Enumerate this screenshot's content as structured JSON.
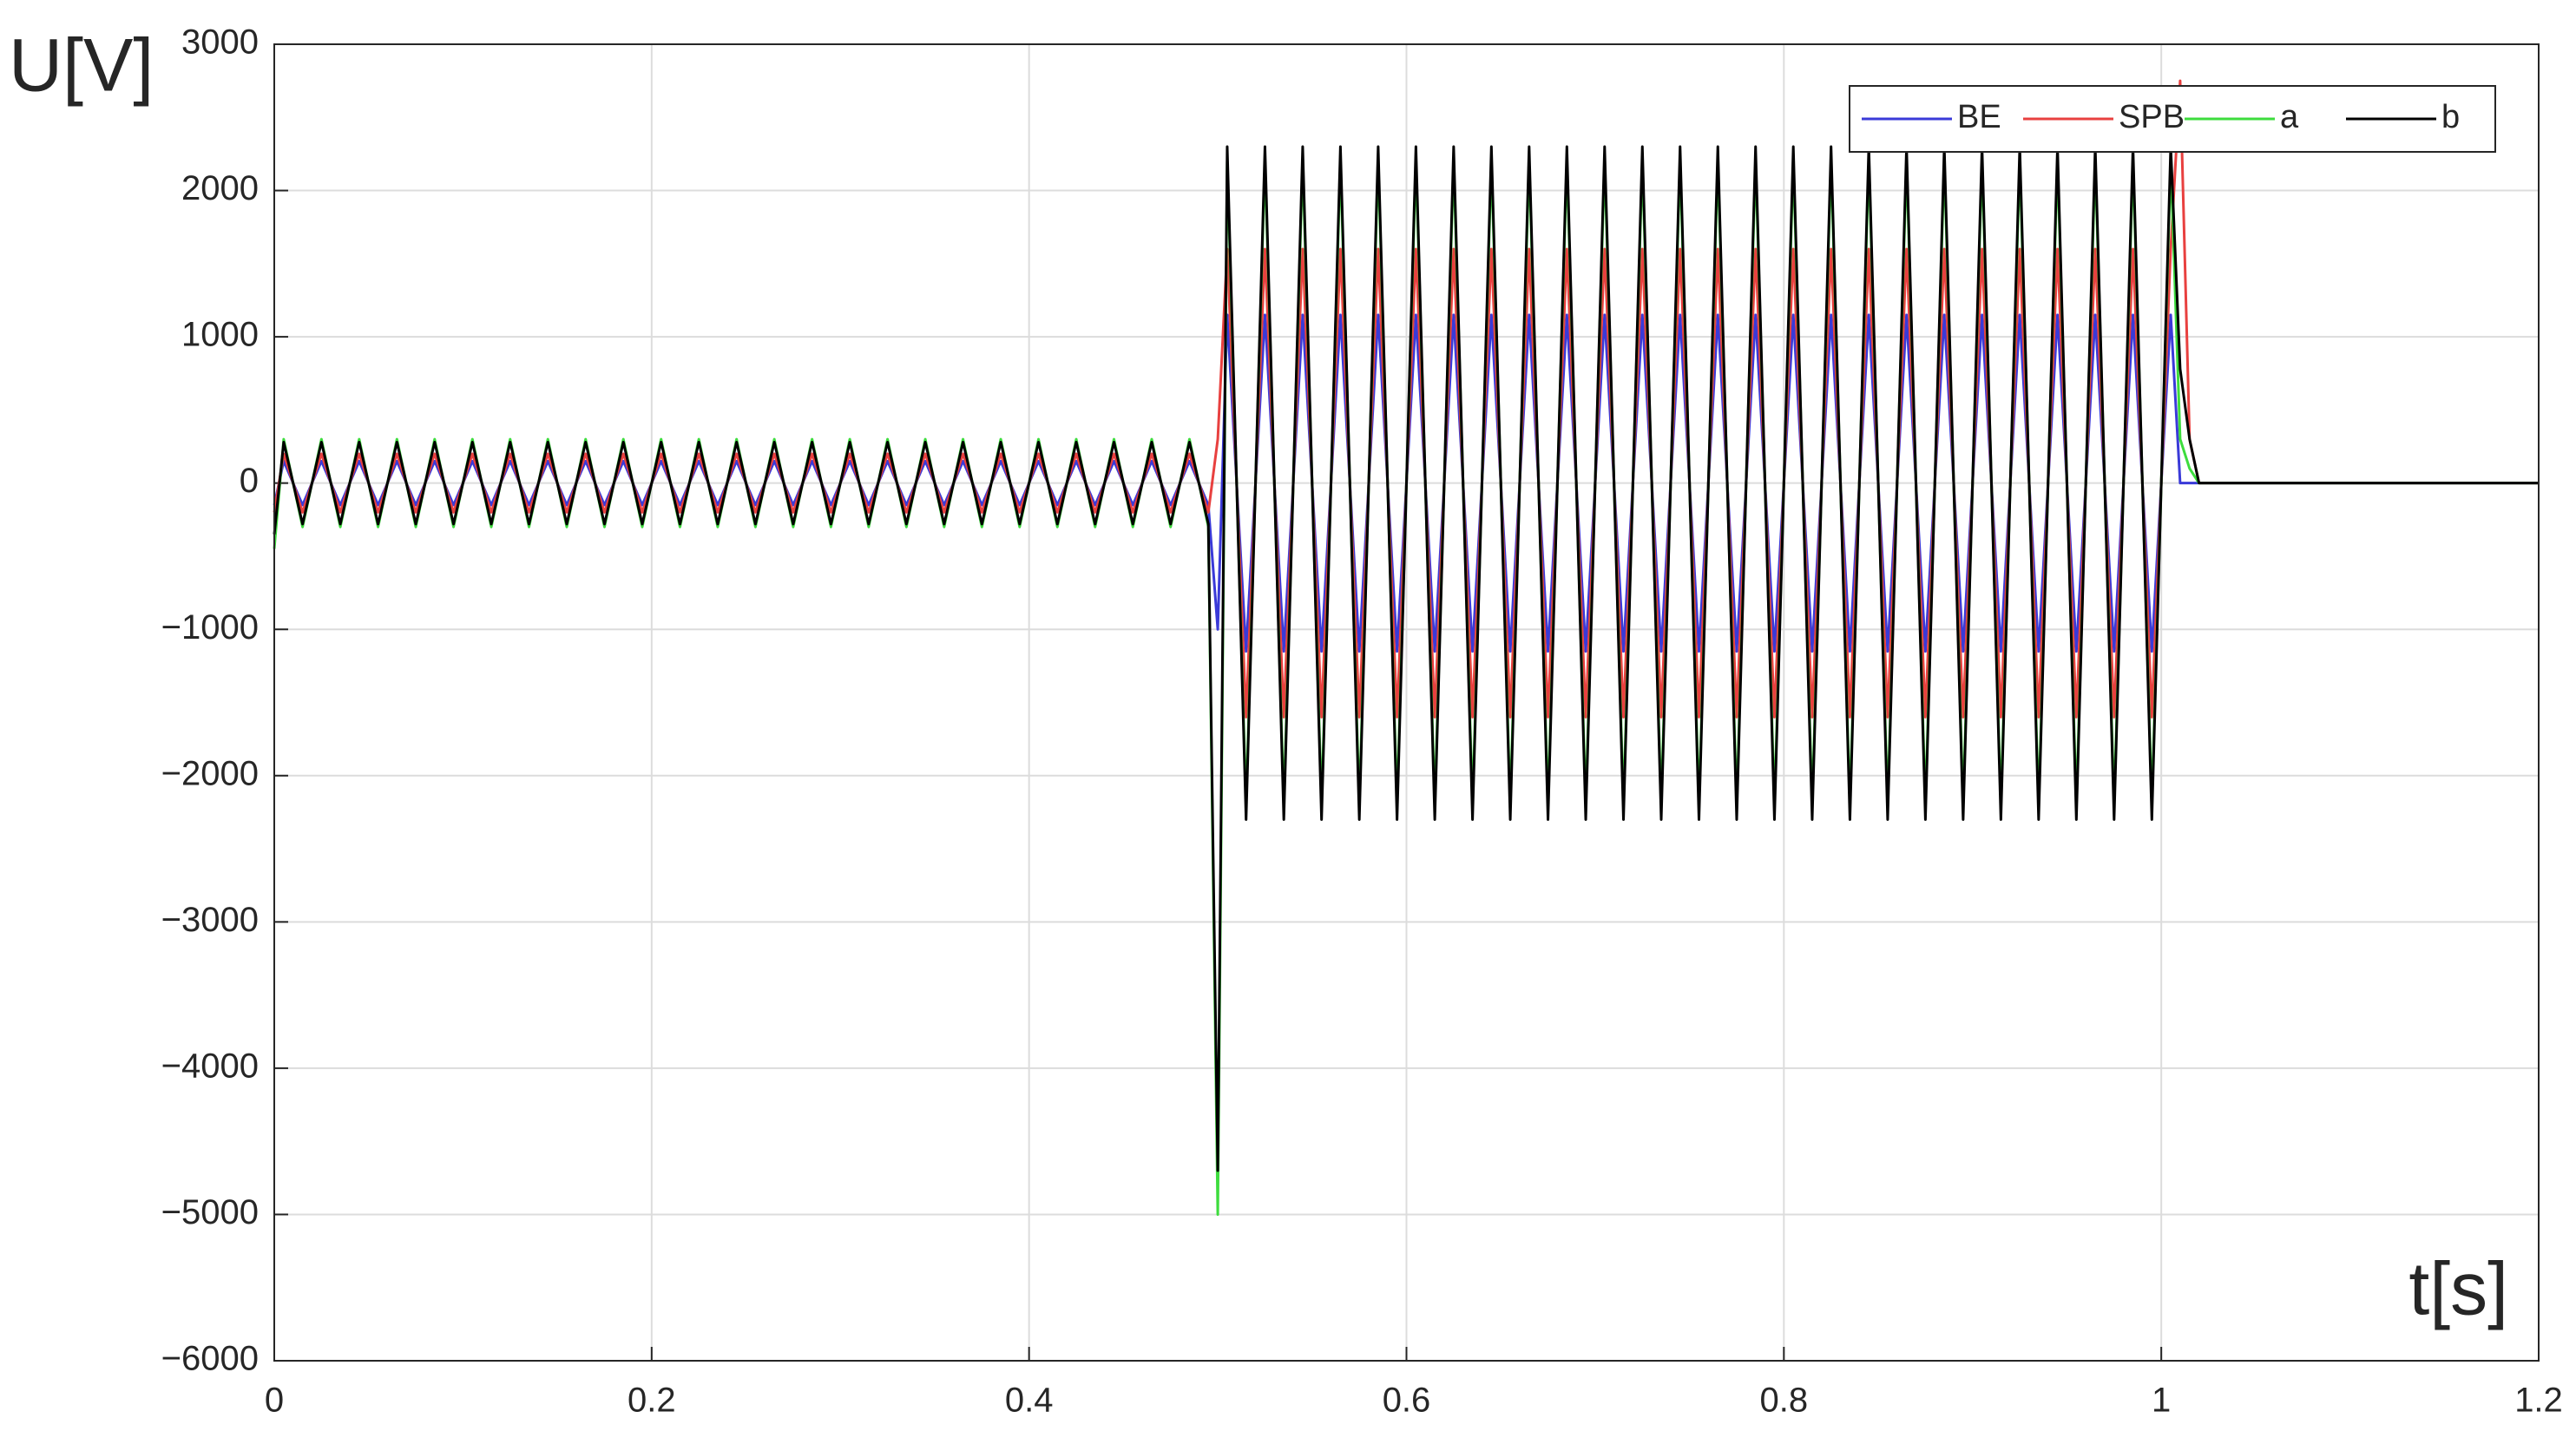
{
  "chart_data": {
    "type": "line",
    "ylabel": "U[V]",
    "xlabel": "t[s]",
    "x": [
      0,
      0.005,
      0.015,
      0.025,
      0.035,
      0.045,
      0.055,
      0.065,
      0.075,
      0.085,
      0.095,
      0.105,
      0.115,
      0.125,
      0.135,
      0.145,
      0.155,
      0.165,
      0.175,
      0.185,
      0.195,
      0.205,
      0.215,
      0.225,
      0.235,
      0.245,
      0.255,
      0.265,
      0.275,
      0.285,
      0.295,
      0.305,
      0.315,
      0.325,
      0.335,
      0.345,
      0.355,
      0.365,
      0.375,
      0.385,
      0.395,
      0.405,
      0.415,
      0.425,
      0.435,
      0.445,
      0.455,
      0.465,
      0.475,
      0.485,
      0.495,
      0.5,
      0.505,
      0.515,
      0.525,
      0.535,
      0.545,
      0.555,
      0.565,
      0.575,
      0.585,
      0.595,
      0.605,
      0.615,
      0.625,
      0.635,
      0.645,
      0.655,
      0.665,
      0.675,
      0.685,
      0.695,
      0.705,
      0.715,
      0.725,
      0.735,
      0.745,
      0.755,
      0.765,
      0.775,
      0.785,
      0.795,
      0.805,
      0.815,
      0.825,
      0.835,
      0.845,
      0.855,
      0.865,
      0.875,
      0.885,
      0.895,
      0.905,
      0.915,
      0.925,
      0.935,
      0.945,
      0.955,
      0.965,
      0.975,
      0.985,
      0.995,
      1.005,
      1.01,
      1.015,
      1.02,
      1.2
    ],
    "series": [
      {
        "name": "BE",
        "color": "#3a3ad8",
        "values": [
          -150,
          150,
          -150,
          150,
          -150,
          150,
          -150,
          150,
          -150,
          150,
          -150,
          150,
          -150,
          150,
          -150,
          150,
          -150,
          150,
          -150,
          150,
          -150,
          150,
          -150,
          150,
          -150,
          150,
          -150,
          150,
          -150,
          150,
          -150,
          150,
          -150,
          150,
          -150,
          150,
          -150,
          150,
          -150,
          150,
          -150,
          150,
          -150,
          150,
          -150,
          150,
          -150,
          150,
          -150,
          150,
          -150,
          -1000,
          1150,
          -1150,
          1150,
          -1150,
          1150,
          -1150,
          1150,
          -1150,
          1150,
          -1150,
          1150,
          -1150,
          1150,
          -1150,
          1150,
          -1150,
          1150,
          -1150,
          1150,
          -1150,
          1150,
          -1150,
          1150,
          -1150,
          1150,
          -1150,
          1150,
          -1150,
          1150,
          -1150,
          1150,
          -1150,
          1150,
          -1150,
          1150,
          -1150,
          1150,
          -1150,
          1150,
          -1150,
          1150,
          -1150,
          1150,
          -1150,
          1150,
          -1150,
          1150,
          -1150,
          1150,
          -1150,
          1150,
          0,
          0,
          0,
          0
        ]
      },
      {
        "name": "SPB",
        "color": "#e8403f",
        "values": [
          -200,
          200,
          -200,
          200,
          -200,
          200,
          -200,
          200,
          -200,
          200,
          -200,
          200,
          -200,
          200,
          -200,
          200,
          -200,
          200,
          -200,
          200,
          -200,
          200,
          -200,
          200,
          -200,
          200,
          -200,
          200,
          -200,
          200,
          -200,
          200,
          -200,
          200,
          -200,
          200,
          -200,
          200,
          -200,
          200,
          -200,
          200,
          -200,
          200,
          -200,
          200,
          -200,
          200,
          -200,
          200,
          -200,
          300,
          1600,
          -1600,
          1600,
          -1600,
          1600,
          -1600,
          1600,
          -1600,
          1600,
          -1600,
          1600,
          -1600,
          1600,
          -1600,
          1600,
          -1600,
          1600,
          -1600,
          1600,
          -1600,
          1600,
          -1600,
          1600,
          -1600,
          1600,
          -1600,
          1600,
          -1600,
          1600,
          -1600,
          1600,
          -1600,
          1600,
          -1600,
          1600,
          -1600,
          1600,
          -1600,
          1600,
          -1600,
          1600,
          -1600,
          1600,
          -1600,
          1600,
          -1600,
          1600,
          -1600,
          1600,
          -1600,
          1600,
          2750,
          300,
          0,
          0
        ]
      },
      {
        "name": "a",
        "color": "#3ddc3d",
        "values": [
          -450,
          300,
          -300,
          300,
          -300,
          300,
          -300,
          300,
          -300,
          300,
          -300,
          300,
          -300,
          300,
          -300,
          300,
          -300,
          300,
          -300,
          300,
          -300,
          300,
          -300,
          300,
          -300,
          300,
          -300,
          300,
          -300,
          300,
          -300,
          300,
          -300,
          300,
          -300,
          300,
          -300,
          300,
          -300,
          300,
          -300,
          300,
          -300,
          300,
          -300,
          300,
          -300,
          300,
          -300,
          300,
          -300,
          -5000,
          2200,
          -2200,
          2200,
          -2200,
          2200,
          -2200,
          2200,
          -2200,
          2200,
          -2200,
          2200,
          -2200,
          2200,
          -2200,
          2200,
          -2200,
          2200,
          -2200,
          2200,
          -2200,
          2200,
          -2200,
          2200,
          -2200,
          2200,
          -2200,
          2200,
          -2200,
          2200,
          -2200,
          2200,
          -2200,
          2200,
          -2200,
          2200,
          -2200,
          2200,
          -2200,
          2200,
          -2200,
          2200,
          -2200,
          2200,
          -2200,
          2200,
          -2200,
          2200,
          -2200,
          2200,
          -2200,
          2200,
          300,
          100,
          0,
          0
        ]
      },
      {
        "name": "b",
        "color": "#000000",
        "values": [
          -350,
          280,
          -280,
          280,
          -280,
          280,
          -280,
          280,
          -280,
          280,
          -280,
          280,
          -280,
          280,
          -280,
          280,
          -280,
          280,
          -280,
          280,
          -280,
          280,
          -280,
          280,
          -280,
          280,
          -280,
          280,
          -280,
          280,
          -280,
          280,
          -280,
          280,
          -280,
          280,
          -280,
          280,
          -280,
          280,
          -280,
          280,
          -280,
          280,
          -280,
          280,
          -280,
          280,
          -280,
          280,
          -280,
          -4700,
          2300,
          -2300,
          2300,
          -2300,
          2300,
          -2300,
          2300,
          -2300,
          2300,
          -2300,
          2300,
          -2300,
          2300,
          -2300,
          2300,
          -2300,
          2300,
          -2300,
          2300,
          -2300,
          2300,
          -2300,
          2300,
          -2300,
          2300,
          -2300,
          2300,
          -2300,
          2300,
          -2300,
          2300,
          -2300,
          2300,
          -2300,
          2300,
          -2300,
          2300,
          -2300,
          2300,
          -2300,
          2300,
          -2300,
          2300,
          -2300,
          2300,
          -2300,
          2300,
          -2300,
          2300,
          -2300,
          2300,
          780,
          300,
          0,
          0
        ]
      }
    ],
    "xlim": [
      0,
      1.2
    ],
    "xticks": [
      0,
      0.2,
      0.4,
      0.6,
      0.8,
      1,
      1.2
    ],
    "ylim": [
      -6000,
      3000
    ],
    "yticks": [
      {
        "value": -6000,
        "label": "−6000"
      },
      {
        "value": -5000,
        "label": "−5000"
      },
      {
        "value": -4000,
        "label": "−4000"
      },
      {
        "value": -3000,
        "label": "−3000"
      },
      {
        "value": -2000,
        "label": "−2000"
      },
      {
        "value": -1000,
        "label": "−1000"
      },
      0,
      1000,
      2000,
      3000
    ],
    "grid": true,
    "legend": "top-right"
  }
}
